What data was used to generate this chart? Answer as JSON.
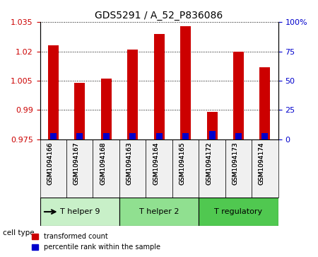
{
  "title": "GDS5291 / A_52_P836086",
  "samples": [
    "GSM1094166",
    "GSM1094167",
    "GSM1094168",
    "GSM1094163",
    "GSM1094164",
    "GSM1094165",
    "GSM1094172",
    "GSM1094173",
    "GSM1094174"
  ],
  "transformed_count": [
    1.023,
    1.004,
    1.006,
    1.021,
    1.029,
    1.033,
    0.989,
    1.02,
    1.012
  ],
  "percentile_rank": [
    5,
    5,
    5,
    5,
    5,
    5,
    7,
    5,
    5
  ],
  "ylim_left": [
    0.975,
    1.035
  ],
  "ylim_right": [
    0,
    100
  ],
  "yticks_left": [
    0.975,
    0.99,
    1.005,
    1.02,
    1.035
  ],
  "yticks_right": [
    0,
    25,
    50,
    75,
    100
  ],
  "ytick_labels_left": [
    "0.975",
    "0.99",
    "1.005",
    "1.02",
    "1.035"
  ],
  "ytick_labels_right": [
    "0",
    "25",
    "50",
    "75",
    "100%"
  ],
  "baseline": 0.975,
  "cell_type_groups": [
    {
      "label": "T helper 9",
      "start": 0,
      "end": 3,
      "color": "#c8f0c8"
    },
    {
      "label": "T helper 2",
      "start": 3,
      "end": 6,
      "color": "#90e090"
    },
    {
      "label": "T regulatory",
      "start": 6,
      "end": 9,
      "color": "#50c850"
    }
  ],
  "bar_color_red": "#cc0000",
  "bar_color_blue": "#0000cc",
  "grid_color": "#000000",
  "bg_color": "#f0f0f0",
  "left_axis_color": "#cc0000",
  "right_axis_color": "#0000cc",
  "bar_width": 0.4
}
